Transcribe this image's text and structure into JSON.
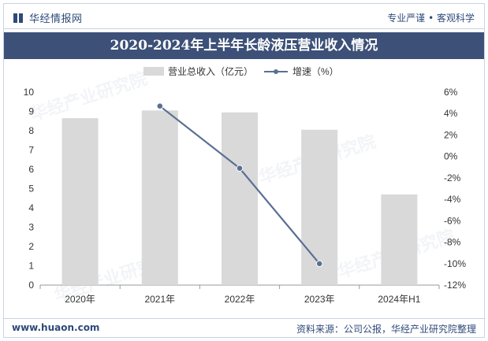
{
  "header": {
    "brand_name": "华经情报网",
    "tagline": "专业严谨 • 客观科学"
  },
  "chart_data": {
    "type": "bar",
    "title": "2020-2024年上半年长龄液压营业收入情况",
    "categories": [
      "2020年",
      "2021年",
      "2022年",
      "2023年",
      "2024年H1"
    ],
    "series": [
      {
        "name": "营业总收入（亿元）",
        "type": "bar",
        "axis": "left",
        "values": [
          8.65,
          9.05,
          8.95,
          8.05,
          4.7
        ]
      },
      {
        "name": "增速（%）",
        "type": "line",
        "axis": "right",
        "values": [
          null,
          4.7,
          -1.1,
          -10.0,
          null
        ]
      }
    ],
    "ylim_left": [
      0,
      10
    ],
    "yticks_left": [
      "0",
      "1",
      "2",
      "3",
      "4",
      "5",
      "6",
      "7",
      "8",
      "9",
      "10"
    ],
    "ylim_right": [
      -12,
      6
    ],
    "yticks_right": [
      "-12%",
      "-10%",
      "-8%",
      "-6%",
      "-4%",
      "-2%",
      "0%",
      "2%",
      "4%",
      "6%"
    ],
    "legend_position": "top-center",
    "grid": false,
    "colors": {
      "bar": "#d9d9d9",
      "line": "#5a6f92"
    }
  },
  "watermark": {
    "text": "华经产业研究院",
    "url": "www.huaon.com"
  },
  "footer": {
    "url": "www.huaon.com",
    "source": "资料来源：公司公报，华经产业研究院整理"
  }
}
